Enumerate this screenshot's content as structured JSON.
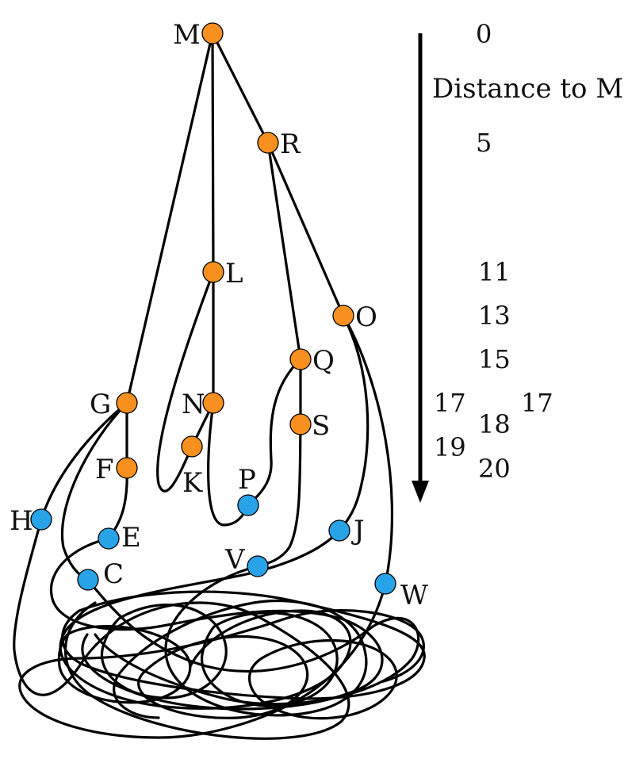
{
  "colors": {
    "visited": "#F7901E",
    "unvisited": "#29A3E8",
    "edge": "#000000"
  },
  "axis": {
    "title": "Distance to M",
    "distance_values": [
      "0",
      "5",
      "11",
      "13",
      "15",
      "17",
      "17",
      "18",
      "19",
      "20"
    ]
  },
  "nodes": [
    {
      "id": "M",
      "label": "M",
      "state": "visited"
    },
    {
      "id": "R",
      "label": "R",
      "state": "visited"
    },
    {
      "id": "L",
      "label": "L",
      "state": "visited"
    },
    {
      "id": "O",
      "label": "O",
      "state": "visited"
    },
    {
      "id": "Q",
      "label": "Q",
      "state": "visited"
    },
    {
      "id": "G",
      "label": "G",
      "state": "visited"
    },
    {
      "id": "N",
      "label": "N",
      "state": "visited"
    },
    {
      "id": "S",
      "label": "S",
      "state": "visited"
    },
    {
      "id": "K",
      "label": "K",
      "state": "visited"
    },
    {
      "id": "F",
      "label": "F",
      "state": "visited"
    },
    {
      "id": "P",
      "label": "P",
      "state": "unvisited"
    },
    {
      "id": "H",
      "label": "H",
      "state": "unvisited"
    },
    {
      "id": "E",
      "label": "E",
      "state": "unvisited"
    },
    {
      "id": "J",
      "label": "J",
      "state": "unvisited"
    },
    {
      "id": "C",
      "label": "C",
      "state": "unvisited"
    },
    {
      "id": "V",
      "label": "V",
      "state": "unvisited"
    },
    {
      "id": "W",
      "label": "W",
      "state": "unvisited"
    }
  ],
  "edges": [
    [
      "M",
      "G"
    ],
    [
      "M",
      "L"
    ],
    [
      "M",
      "R"
    ],
    [
      "R",
      "Q"
    ],
    [
      "R",
      "O"
    ],
    [
      "L",
      "N"
    ],
    [
      "L",
      "K"
    ],
    [
      "N",
      "K"
    ],
    [
      "N",
      "P"
    ],
    [
      "Q",
      "S"
    ],
    [
      "Q",
      "P"
    ],
    [
      "G",
      "F"
    ],
    [
      "G",
      "H"
    ],
    [
      "G",
      "C"
    ],
    [
      "F",
      "E"
    ],
    [
      "S",
      "V"
    ],
    [
      "O",
      "J"
    ],
    [
      "O",
      "W"
    ]
  ]
}
